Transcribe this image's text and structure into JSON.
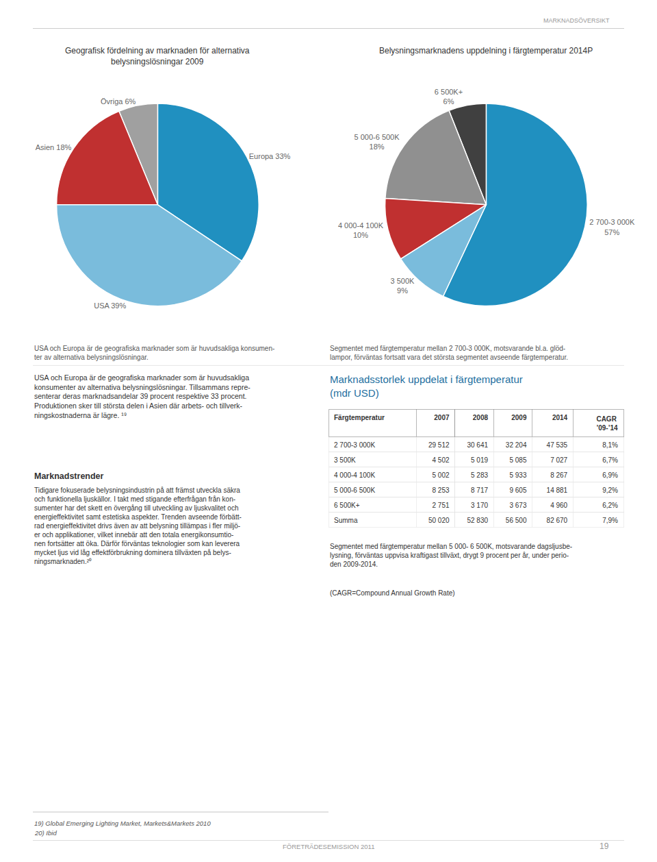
{
  "chart_data": [
    {
      "type": "pie",
      "title": "Geografisk fördelning av marknaden för alternativa\nbelysningslösningar 2009",
      "values": [
        33,
        6,
        18,
        39
      ],
      "value_labels": [
        "Europa 33%",
        "Övriga 6%",
        "Asien 18%",
        "USA 39%"
      ],
      "colors": [
        "#2090C0",
        "#A0A0A0",
        "#C03030",
        "#7ABCDC"
      ],
      "data_labels": true,
      "annotations": [
        "USA och Europa är de geografiska marknader som är huvudsakliga konsumen-\nter av alternativa belysningslösningar."
      ]
    },
    {
      "type": "pie",
      "title": "Belysningsmarknadens uppdelning i färgtemperatur 2014P",
      "values": [
        57,
        6,
        18,
        10,
        9
      ],
      "value_labels": [
        "2 700-3 000K\n57%",
        "6 500K+\n6%",
        "5 000-6 500K\n18%",
        "4 000-4 100K\n10%",
        "3 500K\n9%"
      ],
      "colors": [
        "#2090C0",
        "#404040",
        "#909090",
        "#C03030",
        "#7ABCDC"
      ],
      "data_labels": true,
      "annotations": [
        "Segmentet med färgtemperatur mellan 2 700-3 000K, motsvarande bl.a. glöd-\nlampor, förväntas fortsatt vara det största segmentet avseende färgtemperatur."
      ]
    },
    {
      "type": "table",
      "title": "Marknadsstorlek uppdelat i färgtemperatur\n(mdr USD)",
      "color": "#1E6FA0",
      "columns": [
        "Färgtemperatur",
        "2007",
        "2008",
        "2009",
        "2014",
        "CAGR ’09-’14"
      ],
      "rows": [
        [
          "2 700-3 000K",
          "29 512",
          "30 641",
          "32 204",
          "47 535",
          "8,1%"
        ],
        [
          "3 500K",
          "4 502",
          "5 019",
          "5 085",
          "7 027",
          "6,7%"
        ],
        [
          "4 000-4 100K",
          "5 002",
          "5 283",
          "5 933",
          "8 267",
          "6,9%"
        ],
        [
          "5 000-6 500K",
          "8 253",
          "8 717",
          "9 605",
          "14 881",
          "9,2%"
        ],
        [
          "6 500K+",
          "2 751",
          "3 170",
          "3 673",
          "4 960",
          "6,2%"
        ],
        [
          "Summa",
          "50 020",
          "52 830",
          "56 500",
          "82 670",
          "7,9%"
        ]
      ],
      "annotations": [
        "Segmentet med färgtemperatur mellan 5 000- 6 500K, motsvarande dagsljusbe-\nlysning, förväntas uppvisa kraftigast tillväxt, drygt 9 procent per år, under perio-\nden 2009-2014.",
        "(CAGR=Compound Annual Growth Rate)"
      ]
    }
  ],
  "annotations": [
    "MARKNADSÖVERSIKT",
    "USA och Europa är de geografiska marknader som är huvudsakliga\nkonsumenter av alternativa belysningslösningar. Tillsammans repre-\nsenterar deras marknadsandelar 39 procent respektive 33 procent.\nProduktionen sker till största delen i Asien där arbets- och tillverk-\nningskostnaderna är lägre. ¹⁹",
    "Marknadstrender",
    "Tidigare fokuserade belysningsindustrin på att främst utveckla säkra\noch funktionella ljuskällor. I takt med stigande efterfrågan från kon-\nsumenter har det skett en övergång till utveckling av ljuskvalitet och\nenergieffektivitet samt estetiska aspekter. Trenden avseende förbätt-\nrad energieffektivitet drivs även av att belysning tillämpas i fler miljö-\ner och applikationer, vilket innebär att den totala energikonsumtio-\nnen fortsätter att öka. Därför förväntas teknologier som kan leverera\nmycket ljus vid låg effektförbrukning dominera tillväxten på belys-\nningsmarknaden.²⁰",
    "19) Global Emerging Lighting Market, Markets&Markets 2010",
    "20) Ibid",
    "FÖRETRÄDESEMISSION 2011",
    "19"
  ]
}
